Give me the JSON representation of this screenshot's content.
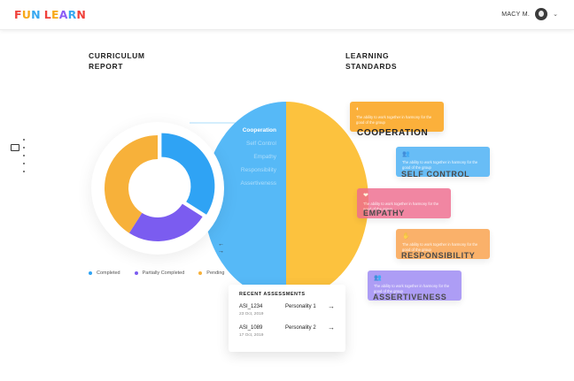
{
  "header": {
    "logo_letters": [
      {
        "ch": "F",
        "color": "#f0413b"
      },
      {
        "ch": "U",
        "color": "#f7a81b"
      },
      {
        "ch": "N",
        "color": "#37a8f0"
      },
      {
        "ch": " ",
        "color": "#ffffff"
      },
      {
        "ch": "L",
        "color": "#f0413b"
      },
      {
        "ch": "E",
        "color": "#f7a81b"
      },
      {
        "ch": "A",
        "color": "#8b5cf6"
      },
      {
        "ch": "R",
        "color": "#37a8f0"
      },
      {
        "ch": "N",
        "color": "#f0413b"
      }
    ],
    "user_name": "MACY M.",
    "chevron": "⌄"
  },
  "curriculum": {
    "heading_line1": "CURRICULUM",
    "heading_line2": "REPORT",
    "legend": [
      {
        "label": "Completed",
        "color": "#2fa3f4"
      },
      {
        "label": "Partially Completed",
        "color": "#7b5cf0"
      },
      {
        "label": "Pending",
        "color": "#f7b13a"
      }
    ]
  },
  "donut": {
    "segments": [
      {
        "name": "completed",
        "fraction": 0.34,
        "color": "#2fa3f4"
      },
      {
        "name": "partial",
        "fraction": 0.25,
        "color": "#7b5cf0"
      },
      {
        "name": "pending",
        "fraction": 0.41,
        "color": "#f7b13a"
      }
    ]
  },
  "standards": {
    "heading_line1": "LEARNING",
    "heading_line2": "STANDARDS",
    "list": [
      "Cooperation",
      "Self Control",
      "Empathy",
      "Responsibility",
      "Assertiveness"
    ],
    "arrow_left": "←",
    "arrow_right": "→",
    "cards": [
      {
        "title": "COOPERATION",
        "desc": "The ability to work together in harmony for the good of the group",
        "color": "#fbb03b",
        "title_color": "#222222",
        "icon": "◐"
      },
      {
        "title": "SELF CONTROL",
        "desc": "The ability to work together in harmony for the good of the group",
        "color": "#48aff5",
        "title_color": "#4a4a4a",
        "icon": "👥"
      },
      {
        "title": "EMPATHY",
        "desc": "The ability to work together in harmony for the good of the group",
        "color": "#ee6c8e",
        "title_color": "#4a4a4a",
        "icon": "❤"
      },
      {
        "title": "RESPONSIBILITY",
        "desc": "The ability to work together in harmony for the good of the group",
        "color": "#f9a04a",
        "title_color": "#4a4a4a",
        "icon": "✋"
      },
      {
        "title": "ASSERTIVENESS",
        "desc": "The ability to work together in harmony for the good of the group",
        "color": "#9c88f3",
        "title_color": "#4a4a4a",
        "icon": "👥"
      }
    ]
  },
  "assessments": {
    "title": "RECENT ASSESSMENTS",
    "rows": [
      {
        "id": "ASI_1234",
        "date": "23 Oct, 2019",
        "name": "Personality 1",
        "arrow": "→"
      },
      {
        "id": "ASI_1089",
        "date": "17 Oct, 2019",
        "name": "Personality 2",
        "arrow": "→"
      }
    ]
  }
}
